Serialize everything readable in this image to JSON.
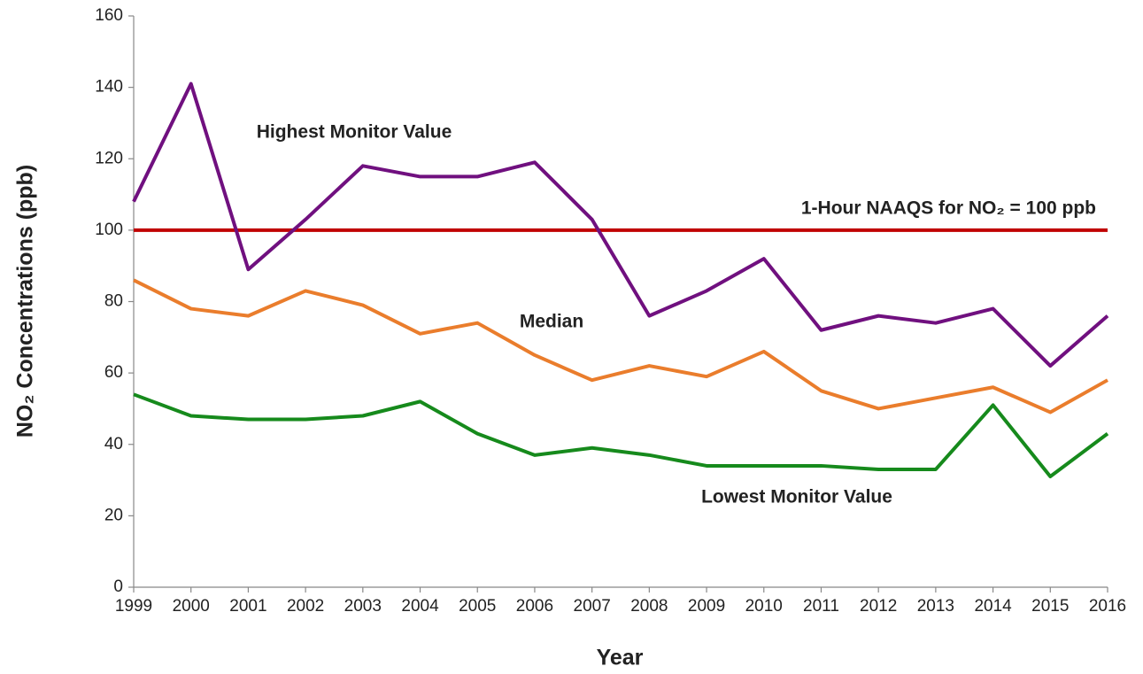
{
  "chart_data": {
    "type": "line",
    "xlabel": "Year",
    "ylabel": "NO₂ Concentrations (ppb)",
    "x": [
      1999,
      2000,
      2001,
      2002,
      2003,
      2004,
      2005,
      2006,
      2007,
      2008,
      2009,
      2010,
      2011,
      2012,
      2013,
      2014,
      2015,
      2016
    ],
    "xlim": [
      1999,
      2016
    ],
    "xticks": [
      1999,
      2000,
      2001,
      2002,
      2003,
      2004,
      2005,
      2006,
      2007,
      2008,
      2009,
      2010,
      2011,
      2012,
      2013,
      2014,
      2015,
      2016
    ],
    "ylim": [
      0,
      160
    ],
    "yticks": [
      0,
      20,
      40,
      60,
      80,
      100,
      120,
      140,
      160
    ],
    "grid": false,
    "series": [
      {
        "name": "Highest Monitor Value",
        "color": "#70107f",
        "values": [
          108,
          141,
          89,
          103,
          118,
          115,
          115,
          119,
          103,
          76,
          83,
          92,
          72,
          76,
          74,
          78,
          62,
          76
        ]
      },
      {
        "name": "Median",
        "color": "#ea7d2c",
        "values": [
          86,
          78,
          76,
          83,
          79,
          71,
          74,
          65,
          58,
          62,
          59,
          66,
          55,
          50,
          53,
          56,
          49,
          58
        ]
      },
      {
        "name": "Lowest Monitor Value",
        "color": "#168a1c",
        "values": [
          54,
          48,
          47,
          47,
          48,
          52,
          43,
          37,
          39,
          37,
          34,
          34,
          34,
          33,
          33,
          51,
          31,
          43
        ]
      }
    ],
    "threshold": {
      "label": "1-Hour NAAQS for NO₂ = 100 ppb",
      "value": 100,
      "color": "#c00000"
    }
  }
}
